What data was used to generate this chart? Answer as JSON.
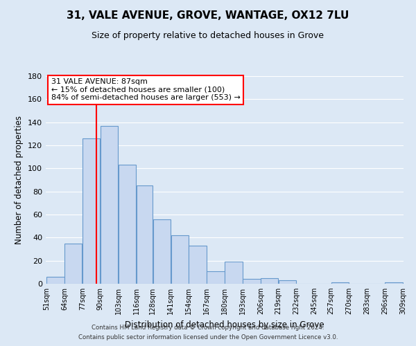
{
  "title": "31, VALE AVENUE, GROVE, WANTAGE, OX12 7LU",
  "subtitle": "Size of property relative to detached houses in Grove",
  "xlabel": "Distribution of detached houses by size in Grove",
  "ylabel": "Number of detached properties",
  "bar_left_edges": [
    51,
    64,
    77,
    90,
    103,
    116,
    128,
    141,
    154,
    167,
    180,
    193,
    206,
    219,
    232,
    245,
    257,
    270,
    283,
    296
  ],
  "bar_heights": [
    6,
    35,
    126,
    137,
    103,
    85,
    56,
    42,
    33,
    11,
    19,
    4,
    5,
    3,
    0,
    0,
    1,
    0,
    0,
    1
  ],
  "bar_widths": [
    13,
    13,
    13,
    13,
    13,
    12,
    13,
    13,
    13,
    13,
    13,
    13,
    13,
    13,
    13,
    12,
    13,
    13,
    13,
    13
  ],
  "tick_labels": [
    "51sqm",
    "64sqm",
    "77sqm",
    "90sqm",
    "103sqm",
    "116sqm",
    "128sqm",
    "141sqm",
    "154sqm",
    "167sqm",
    "180sqm",
    "193sqm",
    "206sqm",
    "219sqm",
    "232sqm",
    "245sqm",
    "257sqm",
    "270sqm",
    "283sqm",
    "296sqm",
    "309sqm"
  ],
  "bar_color": "#c8d8f0",
  "bar_edge_color": "#6699cc",
  "property_line_x": 87,
  "property_line_color": "red",
  "annotation_line1": "31 VALE AVENUE: 87sqm",
  "annotation_line2": "← 15% of detached houses are smaller (100)",
  "annotation_line3": "84% of semi-detached houses are larger (553) →",
  "ylim": [
    0,
    180
  ],
  "yticks": [
    0,
    20,
    40,
    60,
    80,
    100,
    120,
    140,
    160,
    180
  ],
  "footer_line1": "Contains HM Land Registry data © Crown copyright and database right 2024.",
  "footer_line2": "Contains public sector information licensed under the Open Government Licence v3.0.",
  "background_color": "#dce8f5",
  "plot_background_color": "#dce8f5",
  "grid_color": "#ffffff",
  "title_fontsize": 11,
  "subtitle_fontsize": 9
}
